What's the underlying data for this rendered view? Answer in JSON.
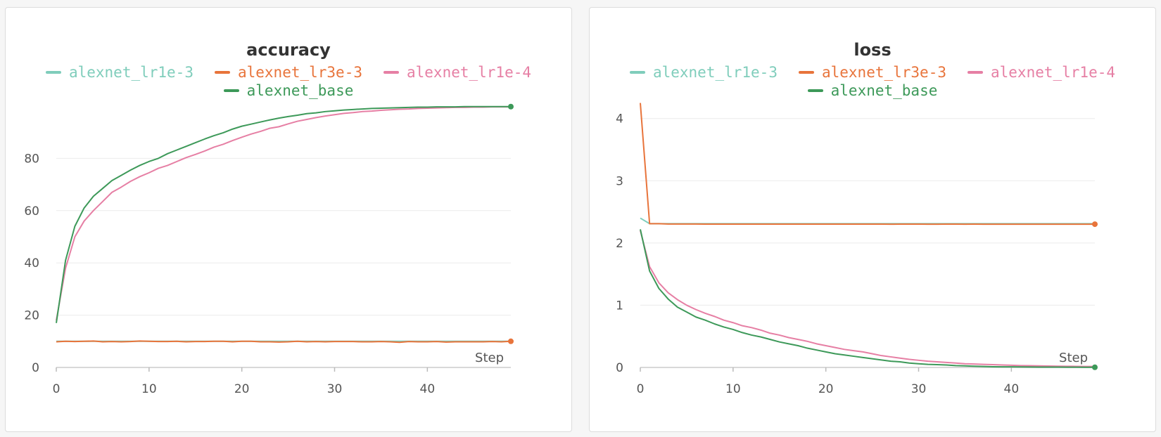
{
  "chart_data": [
    {
      "type": "line",
      "title": "accuracy",
      "xlabel": "Step",
      "ylabel": "",
      "xlim": [
        0,
        49
      ],
      "ylim": [
        0,
        100
      ],
      "xticks": [
        0,
        10,
        20,
        30,
        40
      ],
      "yticks": [
        0,
        20,
        40,
        60,
        80
      ],
      "grid": true,
      "legend_position": "top",
      "x": [
        0,
        1,
        2,
        3,
        4,
        5,
        6,
        7,
        8,
        9,
        10,
        11,
        12,
        13,
        14,
        15,
        16,
        17,
        18,
        19,
        20,
        21,
        22,
        23,
        24,
        25,
        26,
        27,
        28,
        29,
        30,
        31,
        32,
        33,
        34,
        35,
        36,
        37,
        38,
        39,
        40,
        41,
        42,
        43,
        44,
        45,
        46,
        47,
        48,
        49
      ],
      "series": [
        {
          "name": "alexnet_lr1e-3",
          "color": "#7fcdbb",
          "end_marker": false,
          "values": [
            10,
            10,
            10,
            10,
            10,
            10,
            10,
            10,
            10,
            10,
            10,
            10,
            10,
            10,
            10,
            10,
            10,
            10,
            10,
            10,
            10,
            10,
            10,
            10,
            10,
            10,
            10,
            10,
            10,
            10,
            10,
            10,
            10,
            10,
            10,
            10,
            10,
            10,
            10,
            10,
            10,
            10,
            10,
            10,
            10,
            10,
            10,
            10,
            10,
            10
          ]
        },
        {
          "name": "alexnet_lr3e-3",
          "color": "#e8743b",
          "end_marker": true,
          "values": [
            9.8,
            10.0,
            9.9,
            10.0,
            10.1,
            9.8,
            9.9,
            9.8,
            9.9,
            10.1,
            10.0,
            9.9,
            9.9,
            10.0,
            9.8,
            9.9,
            9.9,
            10.0,
            10.0,
            9.8,
            10.0,
            10.0,
            9.8,
            9.8,
            9.7,
            9.8,
            10.0,
            9.8,
            9.9,
            9.8,
            9.9,
            9.9,
            9.9,
            9.8,
            9.8,
            9.9,
            9.8,
            9.6,
            9.9,
            9.8,
            9.8,
            9.9,
            9.7,
            9.8,
            9.8,
            9.8,
            9.8,
            9.9,
            9.8,
            10.0
          ]
        },
        {
          "name": "alexnet_lr1e-4",
          "color": "#e67fa4",
          "end_marker": false,
          "values": [
            18,
            38,
            50,
            56,
            60,
            63.5,
            67,
            69,
            71.2,
            73,
            74.5,
            76.2,
            77.3,
            78.8,
            80.3,
            81.5,
            82.8,
            84.3,
            85.4,
            86.8,
            88.1,
            89.3,
            90.3,
            91.5,
            92.1,
            93.2,
            94.2,
            94.9,
            95.6,
            96.2,
            96.7,
            97.2,
            97.5,
            97.9,
            98.1,
            98.4,
            98.6,
            98.8,
            98.9,
            99.1,
            99.2,
            99.3,
            99.4,
            99.5,
            99.5,
            99.6,
            99.6,
            99.7,
            99.7,
            99.7
          ]
        },
        {
          "name": "alexnet_base",
          "color": "#3d9959",
          "end_marker": true,
          "values": [
            17,
            41,
            54,
            61,
            65.5,
            68.5,
            71.5,
            73.5,
            75.5,
            77.3,
            78.8,
            80,
            81.8,
            83.2,
            84.6,
            86,
            87.4,
            88.7,
            89.8,
            91.2,
            92.3,
            93.1,
            93.9,
            94.7,
            95.4,
            96,
            96.5,
            97.1,
            97.4,
            97.9,
            98.2,
            98.5,
            98.7,
            98.9,
            99.1,
            99.2,
            99.3,
            99.4,
            99.5,
            99.6,
            99.6,
            99.7,
            99.7,
            99.7,
            99.8,
            99.8,
            99.8,
            99.8,
            99.8,
            99.8
          ]
        }
      ]
    },
    {
      "type": "line",
      "title": "loss",
      "xlabel": "Step",
      "ylabel": "",
      "xlim": [
        0,
        49
      ],
      "ylim": [
        0,
        4.2
      ],
      "xticks": [
        0,
        10,
        20,
        30,
        40
      ],
      "yticks": [
        0,
        1,
        2,
        3,
        4
      ],
      "grid": true,
      "legend_position": "top",
      "x": [
        0,
        1,
        2,
        3,
        4,
        5,
        6,
        7,
        8,
        9,
        10,
        11,
        12,
        13,
        14,
        15,
        16,
        17,
        18,
        19,
        20,
        21,
        22,
        23,
        24,
        25,
        26,
        27,
        28,
        29,
        30,
        31,
        32,
        33,
        34,
        35,
        36,
        37,
        38,
        39,
        40,
        41,
        42,
        43,
        44,
        45,
        46,
        47,
        48,
        49
      ],
      "series": [
        {
          "name": "alexnet_lr1e-3",
          "color": "#7fcdbb",
          "end_marker": false,
          "values": [
            2.4,
            2.31,
            2.31,
            2.31,
            2.31,
            2.31,
            2.31,
            2.31,
            2.31,
            2.31,
            2.31,
            2.31,
            2.31,
            2.31,
            2.31,
            2.31,
            2.31,
            2.31,
            2.31,
            2.31,
            2.31,
            2.31,
            2.31,
            2.31,
            2.31,
            2.31,
            2.31,
            2.31,
            2.31,
            2.31,
            2.31,
            2.31,
            2.31,
            2.31,
            2.31,
            2.31,
            2.31,
            2.31,
            2.31,
            2.31,
            2.31,
            2.31,
            2.31,
            2.31,
            2.31,
            2.31,
            2.31,
            2.31,
            2.31,
            2.31
          ]
        },
        {
          "name": "alexnet_lr3e-3",
          "color": "#e8743b",
          "end_marker": true,
          "values": [
            4.25,
            2.31,
            2.31,
            2.305,
            2.305,
            2.305,
            2.304,
            2.303,
            2.303,
            2.303,
            2.303,
            2.303,
            2.303,
            2.303,
            2.303,
            2.303,
            2.303,
            2.303,
            2.303,
            2.303,
            2.303,
            2.303,
            2.303,
            2.303,
            2.303,
            2.303,
            2.303,
            2.302,
            2.303,
            2.303,
            2.303,
            2.302,
            2.302,
            2.303,
            2.303,
            2.302,
            2.303,
            2.302,
            2.302,
            2.302,
            2.302,
            2.302,
            2.302,
            2.302,
            2.302,
            2.302,
            2.302,
            2.302,
            2.302,
            2.302
          ]
        },
        {
          "name": "alexnet_lr1e-4",
          "color": "#e67fa4",
          "end_marker": false,
          "values": [
            2.2,
            1.62,
            1.36,
            1.2,
            1.09,
            1.0,
            0.93,
            0.87,
            0.82,
            0.76,
            0.72,
            0.67,
            0.64,
            0.6,
            0.55,
            0.52,
            0.48,
            0.45,
            0.42,
            0.38,
            0.35,
            0.32,
            0.29,
            0.27,
            0.25,
            0.22,
            0.19,
            0.17,
            0.15,
            0.13,
            0.115,
            0.1,
            0.09,
            0.08,
            0.07,
            0.06,
            0.055,
            0.05,
            0.045,
            0.04,
            0.035,
            0.03,
            0.028,
            0.025,
            0.023,
            0.02,
            0.019,
            0.017,
            0.016,
            0.015
          ]
        },
        {
          "name": "alexnet_base",
          "color": "#3d9959",
          "end_marker": true,
          "values": [
            2.22,
            1.55,
            1.27,
            1.1,
            0.97,
            0.89,
            0.81,
            0.76,
            0.7,
            0.65,
            0.61,
            0.56,
            0.52,
            0.49,
            0.45,
            0.41,
            0.38,
            0.35,
            0.31,
            0.28,
            0.25,
            0.22,
            0.2,
            0.18,
            0.16,
            0.14,
            0.12,
            0.1,
            0.09,
            0.07,
            0.06,
            0.05,
            0.045,
            0.04,
            0.03,
            0.025,
            0.02,
            0.015,
            0.012,
            0.01,
            0.01,
            0.008,
            0.007,
            0.006,
            0.005,
            0.005,
            0.004,
            0.004,
            0.003,
            0.003
          ]
        }
      ]
    }
  ]
}
